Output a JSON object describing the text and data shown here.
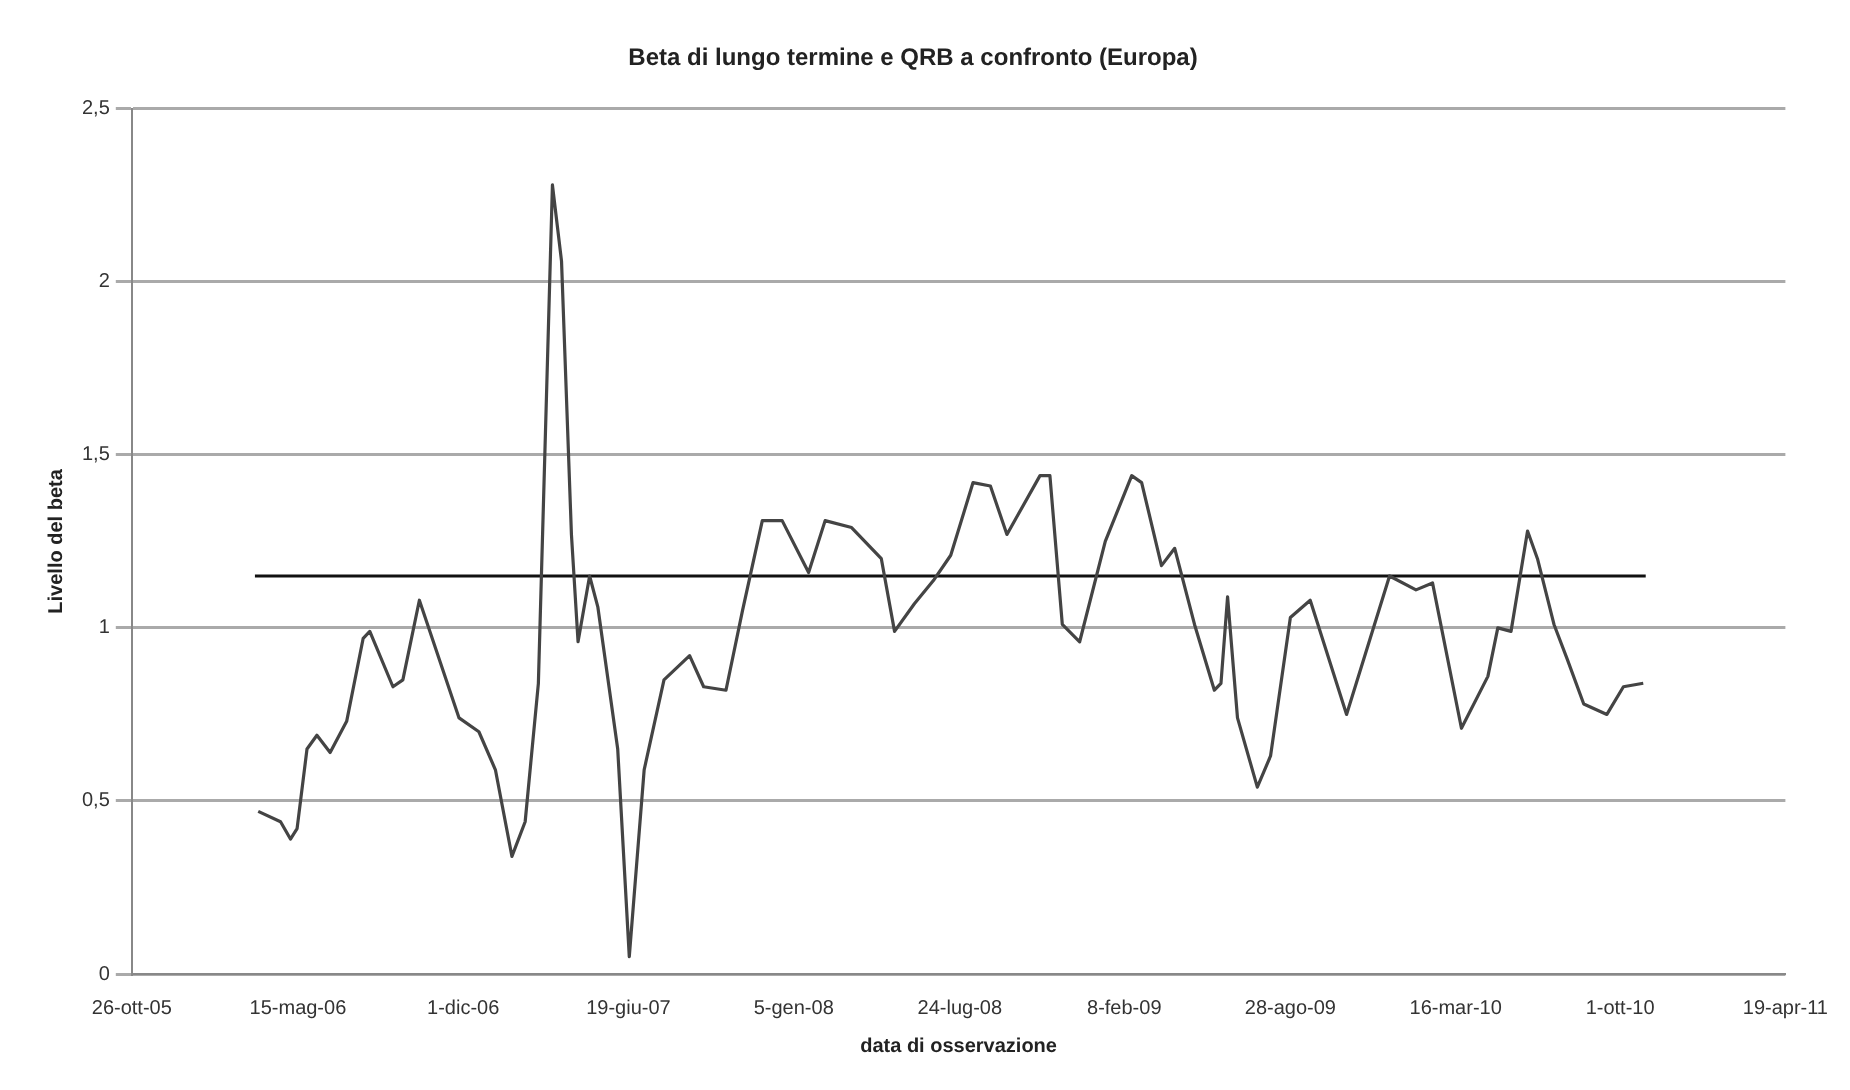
{
  "chart_data": {
    "type": "line",
    "title": "Beta di lungo termine e QRB a confronto (Europa)",
    "xlabel": "data di osservazione",
    "ylabel": "Livello del beta",
    "xlim": [
      "2005-10-26",
      "2011-04-19"
    ],
    "xticks": [
      {
        "value": "2005-10-26",
        "label": "26-ott-05"
      },
      {
        "value": "2006-05-15",
        "label": "15-mag-06"
      },
      {
        "value": "2006-12-01",
        "label": "1-dic-06"
      },
      {
        "value": "2007-06-19",
        "label": "19-giu-07"
      },
      {
        "value": "2008-01-05",
        "label": "5-gen-08"
      },
      {
        "value": "2008-07-24",
        "label": "24-lug-08"
      },
      {
        "value": "2009-02-08",
        "label": "8-feb-09"
      },
      {
        "value": "2009-08-28",
        "label": "28-ago-09"
      },
      {
        "value": "2010-03-16",
        "label": "16-mar-10"
      },
      {
        "value": "2010-10-01",
        "label": "1-ott-10"
      },
      {
        "value": "2011-04-19",
        "label": "19-apr-11"
      }
    ],
    "ylim": [
      0,
      2.5
    ],
    "yticks": [
      0,
      {
        "value": 0.5,
        "label": "0,5"
      },
      1,
      {
        "value": 1.5,
        "label": "1,5"
      },
      2,
      {
        "value": 2.5,
        "label": "2,5"
      }
    ],
    "grid": "y",
    "legend": false,
    "marker": "none",
    "line_style": "solid",
    "series": [
      {
        "color": "#444444",
        "x": [
          "2006-03-28",
          "2006-04-24",
          "2006-05-06",
          "2006-05-14",
          "2006-05-26",
          "2006-06-07",
          "2006-06-23",
          "2006-07-13",
          "2006-08-02",
          "2006-08-10",
          "2006-09-07",
          "2006-09-19",
          "2006-10-09",
          "2006-11-26",
          "2006-12-20",
          "2007-01-09",
          "2007-01-29",
          "2007-02-14",
          "2007-03-02",
          "2007-03-19",
          "2007-03-30",
          "2007-04-11",
          "2007-04-19",
          "2007-05-03",
          "2007-05-13",
          "2007-06-06",
          "2007-06-20",
          "2007-07-08",
          "2007-08-01",
          "2007-09-01",
          "2007-09-18",
          "2007-10-15",
          "2007-11-04",
          "2007-11-28",
          "2007-12-22",
          "2008-01-23",
          "2008-02-12",
          "2008-03-15",
          "2008-04-20",
          "2008-05-06",
          "2008-05-30",
          "2008-06-23",
          "2008-07-13",
          "2008-08-09",
          "2008-08-30",
          "2008-09-19",
          "2008-10-29",
          "2008-11-10",
          "2008-11-25",
          "2008-12-16",
          "2009-01-16",
          "2009-02-17",
          "2009-03-01",
          "2009-03-25",
          "2009-04-10",
          "2009-05-04",
          "2009-05-28",
          "2009-06-05",
          "2009-06-13",
          "2009-06-25",
          "2009-07-19",
          "2009-08-04",
          "2009-08-28",
          "2009-09-21",
          "2009-11-04",
          "2009-12-26",
          "2010-01-27",
          "2010-02-16",
          "2010-03-23",
          "2010-04-24",
          "2010-05-06",
          "2010-05-22",
          "2010-06-11",
          "2010-06-23",
          "2010-07-13",
          "2010-07-29",
          "2010-08-18",
          "2010-09-15",
          "2010-10-05",
          "2010-10-29"
        ],
        "values": [
          0.47,
          0.44,
          0.39,
          0.42,
          0.65,
          0.69,
          0.64,
          0.73,
          0.97,
          0.99,
          0.83,
          0.85,
          1.08,
          0.74,
          0.7,
          0.59,
          0.34,
          0.44,
          0.84,
          2.28,
          2.06,
          1.27,
          0.96,
          1.15,
          1.06,
          0.65,
          0.05,
          0.59,
          0.85,
          0.92,
          0.83,
          0.82,
          1.05,
          1.31,
          1.31,
          1.16,
          1.31,
          1.29,
          1.2,
          0.99,
          1.07,
          1.14,
          1.21,
          1.42,
          1.41,
          1.27,
          1.44,
          1.44,
          1.01,
          0.96,
          1.25,
          1.44,
          1.42,
          1.18,
          1.23,
          1.01,
          0.82,
          0.84,
          1.09,
          0.74,
          0.54,
          0.63,
          1.03,
          1.08,
          0.75,
          1.15,
          1.11,
          1.13,
          0.71,
          0.86,
          1.0,
          0.99,
          1.28,
          1.2,
          1.01,
          0.91,
          0.78,
          0.75,
          0.83,
          0.84
        ]
      },
      {
        "color": "#111111",
        "x": [
          "2006-03-24",
          "2010-11-01"
        ],
        "values": [
          1.15,
          1.15
        ]
      }
    ]
  }
}
